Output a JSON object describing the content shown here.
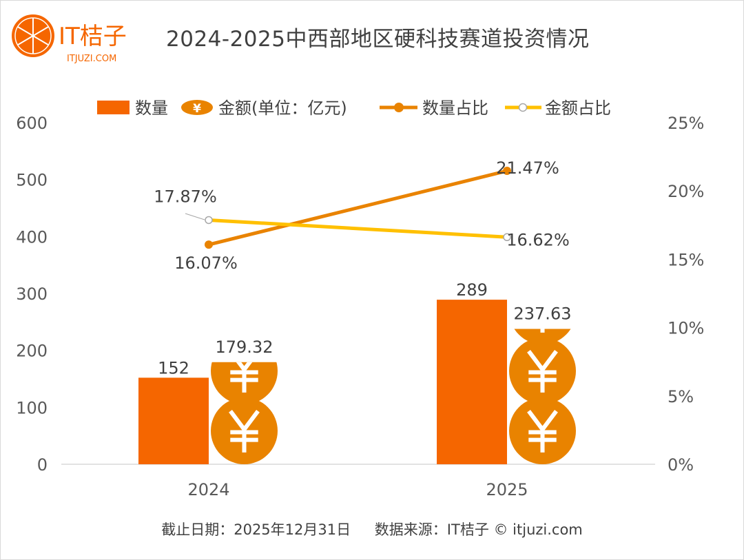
{
  "title": "2024-2025中西部地区硬科技赛道投资情况",
  "logo": {
    "brand": "IT桔子",
    "domain": "ITJUZI.COM"
  },
  "footer": {
    "date": "截止日期：2025年12月31日",
    "source": "数据来源：IT桔子 © itjuzi.com"
  },
  "colors": {
    "count_bar": "#F56600",
    "amount_coin": "#E98300",
    "count_line": "#E98300",
    "amount_line": "#FFC000",
    "marker_amount": "#A6A6A6"
  },
  "chart_data": {
    "type": "bar+line",
    "title": "2024-2025中西部地区硬科技赛道投资情况",
    "categories": [
      "2024",
      "2025"
    ],
    "series": [
      {
        "name": "数量",
        "type": "bar",
        "axis": "left",
        "values": [
          152,
          289
        ],
        "labels": [
          "152",
          "289"
        ]
      },
      {
        "name": "金额(单位：亿元)",
        "type": "bar",
        "axis": "left",
        "values": [
          179.32,
          237.63
        ],
        "labels": [
          "179.32",
          "237.63"
        ]
      },
      {
        "name": "数量占比",
        "type": "line",
        "axis": "right",
        "values": [
          16.07,
          21.47
        ],
        "labels": [
          "16.07%",
          "21.47%"
        ]
      },
      {
        "name": "金额占比",
        "type": "line",
        "axis": "right",
        "values": [
          17.87,
          16.62
        ],
        "labels": [
          "17.87%",
          "16.62%"
        ]
      }
    ],
    "ylim": [
      0,
      600
    ],
    "yticks": [
      "0",
      "100",
      "200",
      "300",
      "400",
      "500",
      "600"
    ],
    "y2lim": [
      0,
      25
    ],
    "y2ticks": [
      "0%",
      "5%",
      "10%",
      "15%",
      "20%",
      "25%"
    ],
    "legend_position": "top",
    "grid": false
  }
}
